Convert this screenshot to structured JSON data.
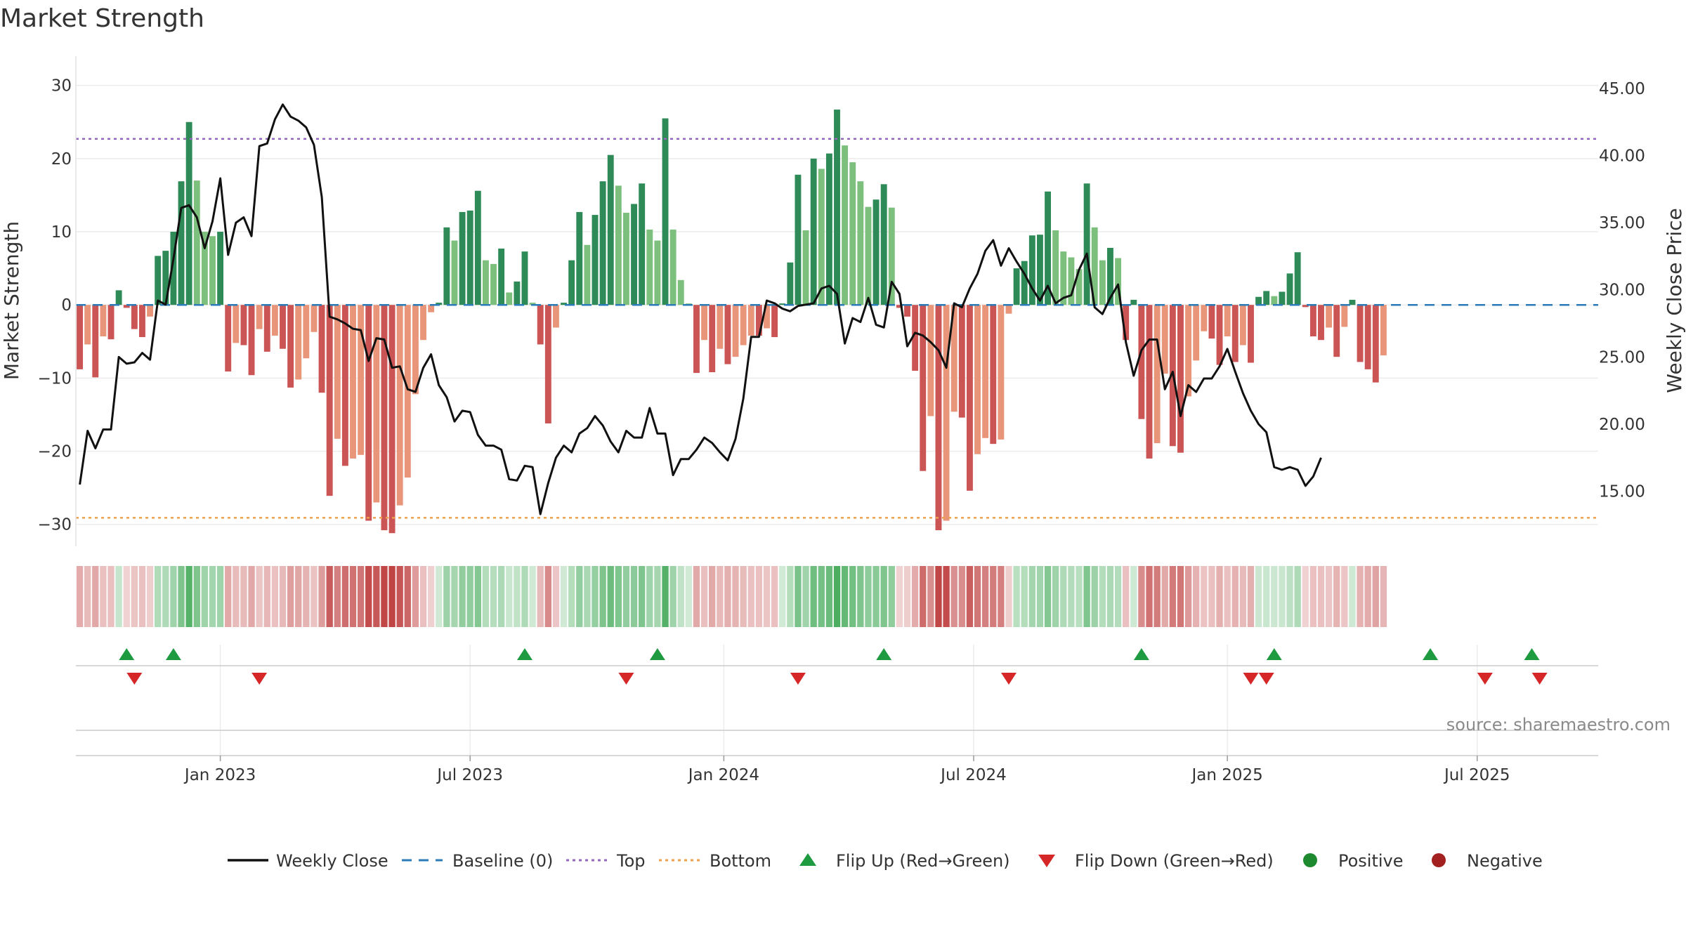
{
  "chart_data": {
    "type": "bar+line",
    "title": "Market Strength",
    "ylabel_left": "Market Strength",
    "ylabel_right": "Weekly Close Price",
    "ylim_left": [
      -33,
      34
    ],
    "ylim_right": [
      10.9,
      47.4
    ],
    "yticks_left": [
      30,
      20,
      10,
      0,
      -10,
      -20,
      -30
    ],
    "yticks_left_labels": [
      "30",
      "20",
      "10",
      "0",
      "−10",
      "−20",
      "−30"
    ],
    "yticks_right": [
      45,
      40,
      35,
      30,
      25,
      20,
      15
    ],
    "yticks_right_labels": [
      "45.00",
      "40.00",
      "35.00",
      "30.00",
      "25.00",
      "20.00",
      "15.00"
    ],
    "x_ticks": [
      "Jan 2023",
      "Jul 2023",
      "Jan 2024",
      "Jul 2024",
      "Jan 2025",
      "Jul 2025"
    ],
    "x_tick_weeks": [
      18,
      50,
      82.5,
      114.5,
      147,
      179
    ],
    "weeks": 195,
    "grid": true,
    "top_threshold": 22.7,
    "bottom_threshold": -29.1,
    "strength": [
      -8.8,
      -5.4,
      -9.9,
      -4.3,
      -4.7,
      2.0,
      -0.4,
      -3.3,
      -4.4,
      -1.6,
      6.7,
      7.4,
      10.0,
      16.9,
      25.0,
      17.0,
      10.0,
      9.4,
      10.0,
      -9.1,
      -5.2,
      -5.5,
      -9.6,
      -3.3,
      -6.4,
      -4.2,
      -6.0,
      -11.3,
      -10.2,
      -7.3,
      -3.7,
      -12.0,
      -26.1,
      -18.3,
      -22.0,
      -21.0,
      -20.5,
      -29.5,
      -27.0,
      -30.8,
      -31.2,
      -27.4,
      -23.6,
      -12.2,
      -4.8,
      -1.0,
      0.3,
      10.6,
      8.8,
      12.7,
      12.9,
      15.6,
      6.1,
      5.6,
      7.7,
      1.7,
      3.2,
      7.3,
      0.3,
      -5.4,
      -16.2,
      -3.1,
      0.3,
      6.1,
      12.7,
      8.2,
      12.3,
      16.9,
      20.5,
      16.3,
      12.6,
      13.8,
      16.6,
      10.3,
      8.8,
      25.5,
      10.3,
      3.4,
      0.2,
      -9.3,
      -4.8,
      -9.2,
      -6.0,
      -8.1,
      -7.1,
      -5.5,
      -4.2,
      -4.2,
      -3.2,
      -4.4,
      0.2,
      5.8,
      17.8,
      10.2,
      20.0,
      18.6,
      20.7,
      26.7,
      21.8,
      19.5,
      16.9,
      13.4,
      14.4,
      16.5,
      13.3,
      -0.4,
      -1.6,
      -9.0,
      -22.7,
      -15.2,
      -30.8,
      -29.5,
      -14.6,
      -15.4,
      -25.4,
      -20.4,
      -18.2,
      -19.0,
      -18.4,
      -1.2,
      5.0,
      6.0,
      9.5,
      9.6,
      15.5,
      10.2,
      7.3,
      6.5,
      4.9,
      16.6,
      10.6,
      6.1,
      7.8,
      6.4,
      -4.8,
      0.7,
      -15.6,
      -21.0,
      -18.9,
      -9.4,
      -19.3,
      -20.2,
      -12.5,
      -7.6,
      -3.6,
      -4.6,
      -8.2,
      -4.3,
      -7.8,
      -5.5,
      -7.9,
      1.1,
      1.9,
      1.2,
      1.8,
      4.3,
      7.2,
      -0.3,
      -4.3,
      -4.8,
      -3.1,
      -7.1,
      -3.0,
      0.7,
      -7.8,
      -8.8,
      -10.6,
      -6.9
    ],
    "weekly_close": [
      15.5,
      19.5,
      18.2,
      19.6,
      19.6,
      25.0,
      24.5,
      24.6,
      25.3,
      24.8,
      29.2,
      28.9,
      32.3,
      36.1,
      36.3,
      35.4,
      33.1,
      35.1,
      38.3,
      32.6,
      35.0,
      35.4,
      34.0,
      40.7,
      40.9,
      42.7,
      43.8,
      42.9,
      42.6,
      42.1,
      40.8,
      36.9,
      28.0,
      27.8,
      27.5,
      27.1,
      27.0,
      24.7,
      26.4,
      26.3,
      24.2,
      24.3,
      22.6,
      22.4,
      24.2,
      25.2,
      22.9,
      22.0,
      20.2,
      21.0,
      20.9,
      19.2,
      18.4,
      18.4,
      18.1,
      15.9,
      15.8,
      16.9,
      16.8,
      13.3,
      15.6,
      17.5,
      18.4,
      17.9,
      19.3,
      19.7,
      20.6,
      19.9,
      18.7,
      17.9,
      19.5,
      19.0,
      19.0,
      21.2,
      19.3,
      19.3,
      16.2,
      17.4,
      17.4,
      18.1,
      19.0,
      18.6,
      17.9,
      17.3,
      18.9,
      21.9,
      26.5,
      26.5,
      29.2,
      29.0,
      28.6,
      28.4,
      28.8,
      28.9,
      29.0,
      30.1,
      30.3,
      29.7,
      26.0,
      27.9,
      27.6,
      29.4,
      27.4,
      27.2,
      30.6,
      29.7,
      25.8,
      26.8,
      26.6,
      26.1,
      25.5,
      24.2,
      29.0,
      28.7,
      30.1,
      31.2,
      32.9,
      33.7,
      31.8,
      33.1,
      32.1,
      31.2,
      30.1,
      29.2,
      30.3,
      29.0,
      29.4,
      29.6,
      31.5,
      32.7,
      28.7,
      28.2,
      29.4,
      30.4,
      26.1,
      23.6,
      25.5,
      26.3,
      26.3,
      22.6,
      23.9,
      20.6,
      22.9,
      22.4,
      23.4,
      23.4,
      24.3,
      25.6,
      23.9,
      22.3,
      21.0,
      20.0,
      19.4,
      16.8,
      16.6,
      16.8,
      16.6,
      15.4,
      16.1,
      17.5
    ],
    "flips_up": [
      6,
      12,
      57,
      74,
      103,
      136,
      153,
      173,
      186
    ],
    "flips_down": [
      7,
      23,
      70,
      92,
      119,
      150,
      152,
      180,
      187
    ],
    "dots": [],
    "legend": [
      {
        "label": "Weekly Close",
        "kind": "line",
        "color": "#111111"
      },
      {
        "label": "Baseline (0)",
        "kind": "dash",
        "color": "#2b7bb9"
      },
      {
        "label": "Top",
        "kind": "dot",
        "color": "#9467bd"
      },
      {
        "label": "Bottom",
        "kind": "dot",
        "color": "#f0a04b"
      },
      {
        "label": "Flip Up (Red→Green)",
        "kind": "tri-up",
        "color": "#1e9a40"
      },
      {
        "label": "Flip Down (Green→Red)",
        "kind": "tri-down",
        "color": "#d62728"
      },
      {
        "label": "Positive",
        "kind": "circle",
        "color": "#1e8a30"
      },
      {
        "label": "Negative",
        "kind": "circle",
        "color": "#a32020"
      }
    ],
    "source": "source: sharemaestro.com"
  },
  "colors": {
    "pos_strong": "#2e8b57",
    "pos_weak": "#7dc07d",
    "neg_strong": "#cb5454",
    "neg_weak": "#e8957a",
    "baseline": "#2b7bb9",
    "line": "#111111",
    "top": "#9467bd",
    "bottom": "#f0a04b",
    "flip_up": "#1e9a40",
    "flip_down": "#d62728"
  }
}
